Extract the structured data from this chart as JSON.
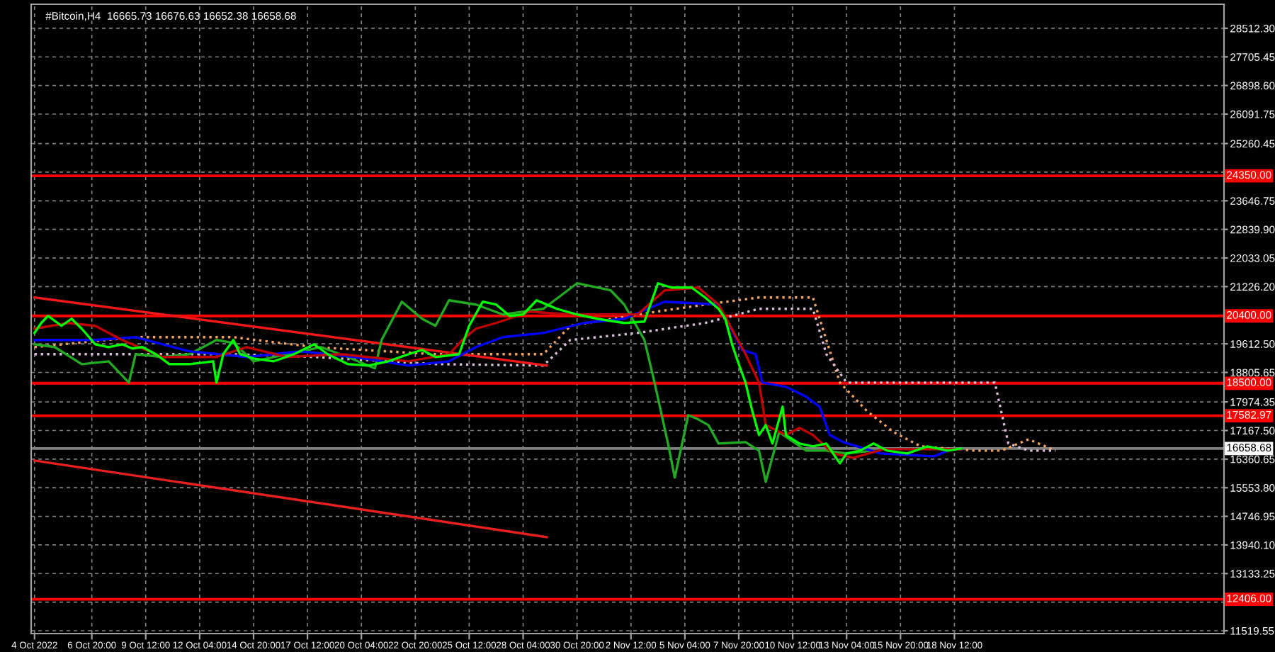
{
  "chart_data": {
    "type": "line",
    "title": "#Bitcoin,H4  16665.73 16676.63 16652.38 16658.68",
    "xlim": [
      "2022-10-03T20:00",
      "2022-12-01T20:00"
    ],
    "xticks": [
      {
        "value": "2022-10-04T00:00",
        "label": "4 Oct 2022"
      },
      {
        "value": "2022-10-06T20:00",
        "label": "6 Oct 20:00"
      },
      {
        "value": "2022-10-09T12:00",
        "label": "9 Oct 12:00"
      },
      {
        "value": "2022-10-12T04:00",
        "label": "12 Oct 04:00"
      },
      {
        "value": "2022-10-14T20:00",
        "label": "14 Oct 20:00"
      },
      {
        "value": "2022-10-17T12:00",
        "label": "17 Oct 12:00"
      },
      {
        "value": "2022-10-20T04:00",
        "label": "20 Oct 04:00"
      },
      {
        "value": "2022-10-22T20:00",
        "label": "22 Oct 20:00"
      },
      {
        "value": "2022-10-25T12:00",
        "label": "25 Oct 12:00"
      },
      {
        "value": "2022-10-28T04:00",
        "label": "28 Oct 04:00"
      },
      {
        "value": "2022-10-30T20:00",
        "label": "30 Oct 20:00"
      },
      {
        "value": "2022-11-02T12:00",
        "label": "2 Nov 12:00"
      },
      {
        "value": "2022-11-05T04:00",
        "label": "5 Nov 04:00"
      },
      {
        "value": "2022-11-07T20:00",
        "label": "7 Nov 20:00"
      },
      {
        "value": "2022-11-10T12:00",
        "label": "10 Nov 12:00"
      },
      {
        "value": "2022-11-13T04:00",
        "label": "13 Nov 04:00"
      },
      {
        "value": "2022-11-15T20:00",
        "label": "15 Nov 20:00"
      },
      {
        "value": "2022-11-18T12:00",
        "label": "18 Nov 12:00"
      }
    ],
    "ylim": [
      11440,
      29190
    ],
    "yticks": [
      {
        "value": 11519.55,
        "label": "11519.55"
      },
      {
        "value": 12326.4,
        "label": null
      },
      {
        "value": 13133.25,
        "label": "13133.25"
      },
      {
        "value": 13940.1,
        "label": "13940.10"
      },
      {
        "value": 14746.95,
        "label": "14746.95"
      },
      {
        "value": 15553.8,
        "label": "15553.80"
      },
      {
        "value": 16360.65,
        "label": "16360.65"
      },
      {
        "value": 17167.5,
        "label": "17167.50"
      },
      {
        "value": 17974.35,
        "label": "17974.35"
      },
      {
        "value": 18805.65,
        "label": "18805.65"
      },
      {
        "value": 19612.5,
        "label": "19612.50"
      },
      {
        "value": 20419.35,
        "label": null
      },
      {
        "value": 21226.2,
        "label": "21226.20"
      },
      {
        "value": 22033.05,
        "label": "22033.05"
      },
      {
        "value": 22839.9,
        "label": "22839.90"
      },
      {
        "value": 23646.75,
        "label": "23646.75"
      },
      {
        "value": 24453.6,
        "label": null
      },
      {
        "value": 25260.45,
        "label": "25260.45"
      },
      {
        "value": 26091.75,
        "label": "26091.75"
      },
      {
        "value": 26898.6,
        "label": "26898.60"
      },
      {
        "value": 27705.45,
        "label": "27705.45"
      },
      {
        "value": 28512.3,
        "label": "28512.30"
      }
    ],
    "grid": true,
    "ref_lines": [
      {
        "axis": "y",
        "value": 24350,
        "label": "24350.00",
        "color": "#ff0000"
      },
      {
        "axis": "y",
        "value": 20400,
        "label": "20400.00",
        "color": "#ff0000"
      },
      {
        "axis": "y",
        "value": 18500,
        "label": "18500.00",
        "color": "#ff0000"
      },
      {
        "axis": "y",
        "value": 17582.97,
        "label": "17582.97",
        "color": "#ff0000"
      },
      {
        "axis": "y",
        "value": 12406,
        "label": "12406.00",
        "color": "#ff0000"
      },
      {
        "axis": "y",
        "value": 16658.68,
        "label": "16658.68",
        "color": "#808080"
      }
    ],
    "series": [
      {
        "type": "line",
        "color": "#f4a460",
        "line_style": "dotted",
        "x": [
          "2022-10-04T00:00",
          "2022-10-09T00:00",
          "2022-10-13T20:00",
          "2022-10-17T20:00",
          "2022-10-23T20:00",
          "2022-10-29T04:00",
          "2022-10-30T12:00",
          "2022-11-02T20:00",
          "2022-11-06T04:00",
          "2022-11-08T20:00",
          "2022-11-11T12:00",
          "2022-11-12T04:00",
          "2022-11-12T20:00",
          "2022-11-14T04:00",
          "2022-11-15T12:00",
          "2022-11-16T20:00",
          "2022-11-19T12:00",
          "2022-11-20T20:00",
          "2022-11-22T04:00",
          "2022-11-23T12:00"
        ],
        "values": [
          19520,
          19800,
          19800,
          19520,
          19320,
          19320,
          20120,
          20440,
          20720,
          20920,
          20920,
          19720,
          18520,
          17720,
          17120,
          16720,
          16600,
          16600,
          16920,
          16600
        ]
      },
      {
        "type": "line",
        "color": "#d8bfd8",
        "line_style": "dotted",
        "x": [
          "2022-10-04T00:00",
          "2022-10-09T00:00",
          "2022-10-13T20:00",
          "2022-10-17T20:00",
          "2022-10-23T20:00",
          "2022-10-29T04:00",
          "2022-10-30T12:00",
          "2022-11-02T20:00",
          "2022-11-06T04:00",
          "2022-11-08T20:00",
          "2022-11-11T12:00",
          "2022-11-12T04:00",
          "2022-11-13T04:00",
          "2022-11-20T12:00",
          "2022-11-21T04:00",
          "2022-11-22T04:00",
          "2022-11-23T12:00"
        ],
        "values": [
          19320,
          19320,
          19320,
          19240,
          19040,
          19000,
          19720,
          19920,
          20200,
          20600,
          20600,
          19320,
          18520,
          18520,
          16800,
          16600,
          16600
        ]
      },
      {
        "type": "line",
        "color": "#f01818",
        "line_style": "solid",
        "x": [
          "2022-10-04T00:00",
          "2022-10-29T08:00"
        ],
        "values": [
          20920,
          19000
        ]
      },
      {
        "type": "line",
        "color": "#e82020",
        "line_style": "solid",
        "x": [
          "2022-10-04T00:00",
          "2022-10-29T08:00"
        ],
        "values": [
          16320,
          14160
        ]
      },
      {
        "type": "line",
        "color": "#22aa22",
        "line_style": "solid",
        "x": [
          "2022-10-04T00:00",
          "2022-10-05T00:00",
          "2022-10-06T08:00",
          "2022-10-07T16:00",
          "2022-10-08T16:00",
          "2022-10-09T00:00",
          "2022-10-10T08:00",
          "2022-10-11T16:00",
          "2022-10-13T00:00",
          "2022-10-13T20:00",
          "2022-10-14T20:00",
          "2022-10-17T04:00",
          "2022-10-18T04:00",
          "2022-10-19T12:00",
          "2022-10-20T20:00",
          "2022-10-21T04:00",
          "2022-10-22T04:00",
          "2022-10-23T04:00",
          "2022-10-23T20:00",
          "2022-10-24T12:00",
          "2022-10-25T20:00",
          "2022-10-27T04:00",
          "2022-10-29T04:00",
          "2022-10-30T20:00",
          "2022-11-01T12:00",
          "2022-11-02T04:00",
          "2022-11-03T04:00",
          "2022-11-03T16:00",
          "2022-11-04T08:00",
          "2022-11-04T16:00",
          "2022-11-05T08:00",
          "2022-11-05T20:00",
          "2022-11-06T08:00",
          "2022-11-06T20:00",
          "2022-11-08T04:00",
          "2022-11-08T20:00",
          "2022-11-09T04:00",
          "2022-11-09T20:00",
          "2022-11-11T04:00",
          "2022-11-12T04:00",
          "2022-11-13T04:00",
          "2022-11-14T12:00"
        ],
        "values": [
          19600,
          19520,
          19040,
          19120,
          18520,
          19320,
          19240,
          19320,
          19720,
          19640,
          19120,
          19400,
          19520,
          19240,
          18920,
          19720,
          20800,
          20320,
          20120,
          20840,
          20720,
          20440,
          20600,
          21320,
          21120,
          20720,
          19720,
          18520,
          16800,
          15840,
          17600,
          17480,
          17320,
          16800,
          16840,
          16600,
          15720,
          17120,
          16600,
          16600,
          16520,
          16600
        ]
      },
      {
        "type": "line",
        "color": "#0000ff",
        "line_style": "solid",
        "x": [
          "2022-10-04T00:00",
          "2022-10-07T00:00",
          "2022-10-09T00:00",
          "2022-10-11T16:00",
          "2022-10-14T12:00",
          "2022-10-17T04:00",
          "2022-10-19T20:00",
          "2022-10-22T12:00",
          "2022-10-24T12:00",
          "2022-10-25T20:00",
          "2022-10-27T04:00",
          "2022-10-29T04:00",
          "2022-10-31T04:00",
          "2022-11-02T04:00",
          "2022-11-04T04:00",
          "2022-11-06T20:00",
          "2022-11-08T00:00",
          "2022-11-08T16:00",
          "2022-11-09T00:00",
          "2022-11-10T04:00",
          "2022-11-11T04:00",
          "2022-11-11T20:00",
          "2022-11-12T08:00",
          "2022-11-13T00:00",
          "2022-11-14T04:00",
          "2022-11-14T20:00",
          "2022-11-17T12:00",
          "2022-11-18T08:00",
          "2022-11-18T20:00"
        ],
        "values": [
          19720,
          19720,
          19800,
          19400,
          19240,
          19400,
          19240,
          19000,
          19120,
          19520,
          19800,
          19920,
          20200,
          20320,
          20800,
          20720,
          19440,
          19320,
          18520,
          18400,
          18120,
          17840,
          17040,
          16840,
          16640,
          16520,
          16440,
          16640,
          16640
        ]
      },
      {
        "type": "line",
        "color": "#c00000",
        "line_style": "solid",
        "x": [
          "2022-10-04T00:00",
          "2022-10-05T16:00",
          "2022-10-07T00:00",
          "2022-10-08T08:00",
          "2022-10-10T08:00",
          "2022-10-13T00:00",
          "2022-10-14T12:00",
          "2022-10-16T12:00",
          "2022-10-19T04:00",
          "2022-10-22T12:00",
          "2022-10-24T12:00",
          "2022-10-25T04:00",
          "2022-10-25T20:00",
          "2022-10-26T20:00",
          "2022-10-28T12:00",
          "2022-10-30T12:00",
          "2022-11-02T20:00",
          "2022-11-04T04:00",
          "2022-11-05T20:00",
          "2022-11-06T20:00",
          "2022-11-08T04:00",
          "2022-11-08T20:00",
          "2022-11-09T04:00",
          "2022-11-10T04:00",
          "2022-11-10T20:00",
          "2022-11-11T12:00",
          "2022-11-12T12:00",
          "2022-11-13T12:00",
          "2022-11-15T00:00",
          "2022-11-18T20:00"
        ],
        "values": [
          20040,
          20200,
          20120,
          19720,
          19240,
          19240,
          19520,
          19240,
          19320,
          19120,
          19320,
          19720,
          20040,
          20200,
          20520,
          20440,
          20440,
          21120,
          21200,
          20720,
          19320,
          18520,
          17320,
          17040,
          17240,
          17040,
          16520,
          16400,
          16640,
          16640
        ]
      },
      {
        "type": "line",
        "color": "#00ff00",
        "line_style": "solid",
        "x": [
          "2022-10-04T00:00",
          "2022-10-04T08:00",
          "2022-10-04T16:00",
          "2022-10-05T08:00",
          "2022-10-05T20:00",
          "2022-10-06T08:00",
          "2022-10-07T00:00",
          "2022-10-07T16:00",
          "2022-10-08T08:00",
          "2022-10-08T20:00",
          "2022-10-09T08:00",
          "2022-10-10T00:00",
          "2022-10-10T16:00",
          "2022-10-11T16:00",
          "2022-10-12T20:00",
          "2022-10-13T00:00",
          "2022-10-13T08:00",
          "2022-10-13T20:00",
          "2022-10-14T04:00",
          "2022-10-14T20:00",
          "2022-10-15T20:00",
          "2022-10-16T20:00",
          "2022-10-17T20:00",
          "2022-10-18T12:00",
          "2022-10-19T12:00",
          "2022-10-20T12:00",
          "2022-10-21T12:00",
          "2022-10-22T12:00",
          "2022-10-23T04:00",
          "2022-10-23T20:00",
          "2022-10-25T00:00",
          "2022-10-25T12:00",
          "2022-10-26T04:00",
          "2022-10-26T20:00",
          "2022-10-27T12:00",
          "2022-10-28T04:00",
          "2022-10-28T20:00",
          "2022-10-29T20:00",
          "2022-10-30T20:00",
          "2022-10-31T20:00",
          "2022-11-02T04:00",
          "2022-11-03T04:00",
          "2022-11-03T20:00",
          "2022-11-04T12:00",
          "2022-11-05T12:00",
          "2022-11-06T04:00",
          "2022-11-06T20:00",
          "2022-11-07T04:00",
          "2022-11-07T12:00",
          "2022-11-07T20:00",
          "2022-11-08T04:00",
          "2022-11-08T12:00",
          "2022-11-08T20:00",
          "2022-11-09T04:00",
          "2022-11-09T12:00",
          "2022-11-10T00:00",
          "2022-11-10T04:00",
          "2022-11-10T20:00",
          "2022-11-11T12:00",
          "2022-11-12T04:00",
          "2022-11-12T20:00",
          "2022-11-13T04:00",
          "2022-11-13T20:00",
          "2022-11-14T12:00",
          "2022-11-15T04:00",
          "2022-11-16T04:00",
          "2022-11-17T04:00",
          "2022-11-18T04:00",
          "2022-11-18T20:00"
        ],
        "values": [
          19920,
          20200,
          20400,
          20120,
          20320,
          20040,
          19600,
          19520,
          19600,
          19480,
          19520,
          19320,
          19040,
          19040,
          19120,
          18520,
          19320,
          19720,
          19320,
          19200,
          19120,
          19320,
          19600,
          19320,
          19040,
          19000,
          19120,
          19320,
          19440,
          19240,
          19320,
          20120,
          20800,
          20720,
          20400,
          20440,
          20840,
          20600,
          20440,
          20320,
          20200,
          20240,
          21320,
          21200,
          21200,
          20920,
          20600,
          20320,
          19600,
          19040,
          18520,
          17720,
          17040,
          17320,
          16800,
          17840,
          17040,
          16800,
          16720,
          16800,
          16240,
          16520,
          16600,
          16800,
          16600,
          16520,
          16720,
          16600,
          16660
        ]
      }
    ]
  }
}
